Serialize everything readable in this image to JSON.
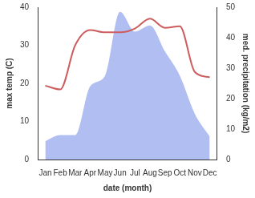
{
  "chart_data": {
    "type": "line",
    "x_label": "date (month)",
    "y_label": "max temp (C)",
    "y2_label": "med. precipitation (kg/m2)",
    "categories": [
      "Jan",
      "Feb",
      "Mar",
      "Apr",
      "May",
      "Jun",
      "Jul",
      "Aug",
      "Sep",
      "Oct",
      "Nov",
      "Dec"
    ],
    "series": [
      {
        "name": "med. precipitation (kg/m2)",
        "type": "area",
        "axis": "y2",
        "color": "#b0bef2",
        "values": [
          6,
          8,
          8,
          24,
          27.5,
          48.5,
          42,
          44,
          35.5,
          27.5,
          15,
          7.5
        ]
      },
      {
        "name": "max temp (C)",
        "type": "line",
        "color": "#cd5c5c",
        "values": [
          19.4,
          18.4,
          30,
          34,
          33.4,
          33.4,
          34.4,
          37,
          34.6,
          35,
          23,
          21.6
        ]
      }
    ],
    "ylim": [
      0,
      40
    ],
    "yticks": [
      0,
      10,
      20,
      30,
      40
    ],
    "y2lim": [
      0,
      50
    ],
    "y2ticks": [
      0,
      10,
      20,
      30,
      40,
      50
    ],
    "grid": false,
    "legend": false
  }
}
